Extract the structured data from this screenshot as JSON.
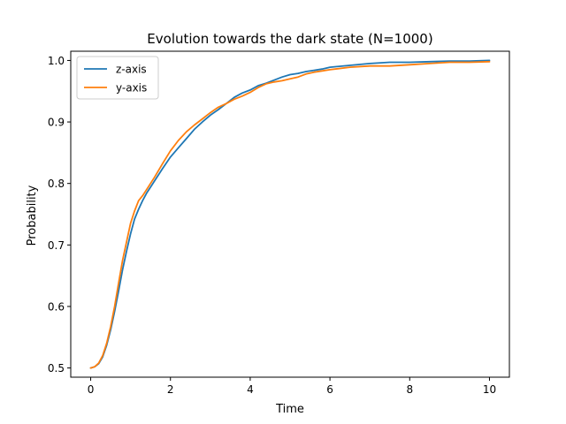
{
  "chart_data": {
    "type": "line",
    "title": "Evolution towards the dark state (N=1000)",
    "xlabel": "Time",
    "ylabel": "Probability",
    "xlim": [
      -0.5,
      10.5
    ],
    "ylim": [
      0.485,
      1.015
    ],
    "xticks": [
      0,
      2,
      4,
      6,
      8,
      10
    ],
    "xtick_labels": [
      "0",
      "2",
      "4",
      "6",
      "8",
      "10"
    ],
    "yticks": [
      0.5,
      0.6,
      0.7,
      0.8,
      0.9,
      1.0
    ],
    "ytick_labels": [
      "0.5",
      "0.6",
      "0.7",
      "0.8",
      "0.9",
      "1.0"
    ],
    "grid": false,
    "legend_position": "upper-left",
    "series": [
      {
        "name": "z-axis",
        "color": "#1f77b4",
        "x": [
          0,
          0.1,
          0.2,
          0.3,
          0.4,
          0.5,
          0.6,
          0.7,
          0.8,
          0.9,
          1.0,
          1.1,
          1.2,
          1.3,
          1.4,
          1.5,
          1.6,
          1.8,
          2.0,
          2.2,
          2.4,
          2.6,
          2.8,
          3.0,
          3.2,
          3.4,
          3.6,
          3.8,
          4.0,
          4.2,
          4.4,
          4.6,
          4.8,
          5.0,
          5.2,
          5.4,
          5.6,
          5.8,
          6.0,
          6.5,
          7.0,
          7.5,
          8.0,
          8.5,
          9.0,
          9.5,
          10.0
        ],
        "y": [
          0.5,
          0.502,
          0.507,
          0.518,
          0.537,
          0.562,
          0.592,
          0.625,
          0.66,
          0.69,
          0.718,
          0.742,
          0.758,
          0.772,
          0.784,
          0.794,
          0.804,
          0.824,
          0.843,
          0.858,
          0.873,
          0.888,
          0.9,
          0.911,
          0.92,
          0.93,
          0.94,
          0.947,
          0.952,
          0.959,
          0.963,
          0.968,
          0.973,
          0.977,
          0.979,
          0.982,
          0.984,
          0.986,
          0.989,
          0.992,
          0.995,
          0.997,
          0.997,
          0.998,
          0.999,
          0.999,
          1.0
        ]
      },
      {
        "name": "y-axis",
        "color": "#ff7f0e",
        "x": [
          0,
          0.1,
          0.2,
          0.3,
          0.4,
          0.5,
          0.6,
          0.7,
          0.8,
          0.9,
          1.0,
          1.1,
          1.2,
          1.3,
          1.4,
          1.5,
          1.6,
          1.8,
          2.0,
          2.2,
          2.4,
          2.6,
          2.8,
          3.0,
          3.2,
          3.4,
          3.6,
          3.8,
          4.0,
          4.2,
          4.4,
          4.6,
          4.8,
          5.0,
          5.2,
          5.4,
          5.6,
          5.8,
          6.0,
          6.5,
          7.0,
          7.5,
          8.0,
          8.5,
          9.0,
          9.5,
          10.0
        ],
        "y": [
          0.5,
          0.502,
          0.508,
          0.52,
          0.54,
          0.567,
          0.6,
          0.638,
          0.675,
          0.705,
          0.735,
          0.755,
          0.772,
          0.78,
          0.79,
          0.8,
          0.81,
          0.832,
          0.853,
          0.87,
          0.884,
          0.895,
          0.905,
          0.915,
          0.924,
          0.93,
          0.937,
          0.942,
          0.948,
          0.956,
          0.962,
          0.965,
          0.967,
          0.97,
          0.973,
          0.978,
          0.981,
          0.983,
          0.985,
          0.989,
          0.991,
          0.991,
          0.993,
          0.995,
          0.997,
          0.997,
          0.998
        ]
      }
    ]
  }
}
